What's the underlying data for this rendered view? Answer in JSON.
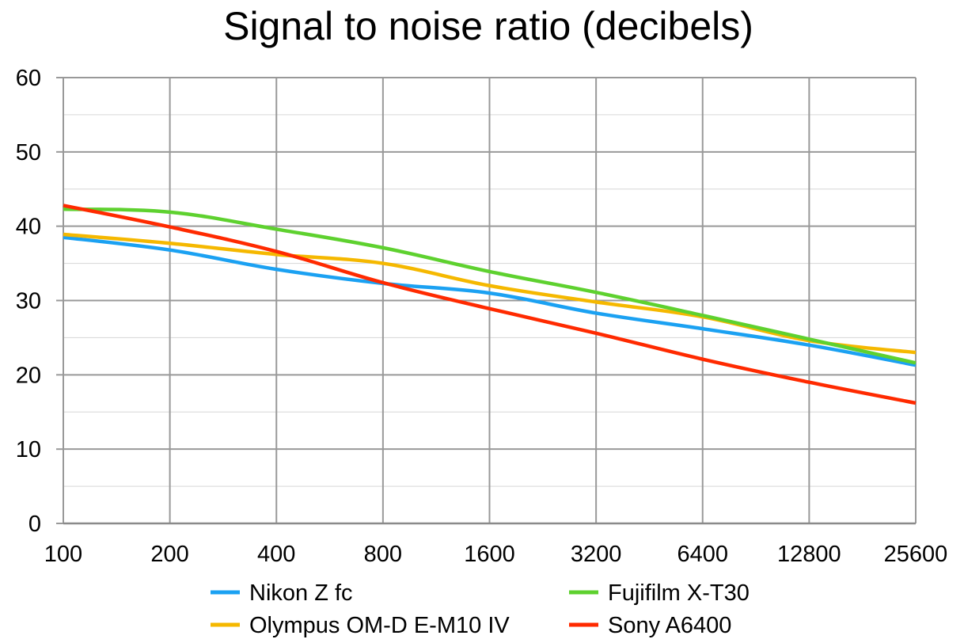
{
  "chart_data": {
    "type": "line",
    "title": "Signal to noise ratio (decibels)",
    "xlabel": "",
    "ylabel": "",
    "categories": [
      "100",
      "200",
      "400",
      "800",
      "1600",
      "3200",
      "6400",
      "12800",
      "25600"
    ],
    "ylim": [
      0,
      60
    ],
    "yticks": [
      "0",
      "10",
      "20",
      "30",
      "40",
      "50",
      "60"
    ],
    "ytick_values": [
      0,
      10,
      20,
      30,
      40,
      50,
      60
    ],
    "grid": true,
    "legend_position": "bottom",
    "series": [
      {
        "name": "Nikon Z fc",
        "color": "#1ba1f2",
        "values": [
          38.5,
          36.8,
          34.2,
          32.3,
          31.0,
          28.3,
          26.2,
          24.0,
          21.3
        ]
      },
      {
        "name": "Olympus OM-D E-M10 IV",
        "color": "#f5b800",
        "values": [
          38.9,
          37.7,
          36.2,
          35.0,
          32.0,
          29.8,
          27.8,
          24.6,
          23.0
        ]
      },
      {
        "name": "Fujifilm X-T30",
        "color": "#5ed12f",
        "values": [
          42.3,
          41.9,
          39.6,
          37.1,
          33.9,
          31.1,
          28.0,
          24.8,
          21.6
        ]
      },
      {
        "name": "Sony A6400",
        "color": "#ff2a00",
        "values": [
          42.8,
          39.9,
          36.6,
          32.4,
          28.9,
          25.6,
          22.1,
          19.0,
          16.2
        ]
      }
    ],
    "legend_order": [
      0,
      2,
      1,
      3
    ]
  }
}
